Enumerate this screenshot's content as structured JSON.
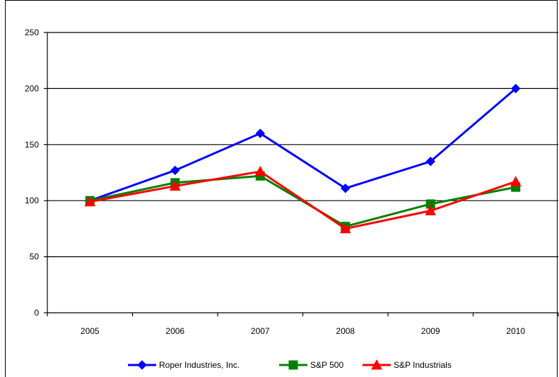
{
  "chart_data": {
    "type": "line",
    "categories": [
      "2005",
      "2006",
      "2007",
      "2008",
      "2009",
      "2010"
    ],
    "ylim": [
      0,
      250
    ],
    "yticks": [
      0,
      50,
      100,
      150,
      200,
      250
    ],
    "grid": "horizontal",
    "legend_position": "bottom",
    "series": [
      {
        "name": "Roper Industries, Inc.",
        "color": "#0000ff",
        "marker": "diamond",
        "values": [
          100,
          127,
          160,
          111,
          135,
          200
        ]
      },
      {
        "name": "S&P 500",
        "color": "#008000",
        "marker": "square",
        "values": [
          100,
          116,
          122,
          77,
          97,
          112
        ]
      },
      {
        "name": "S&P Industrials",
        "color": "#ff0000",
        "marker": "triangle",
        "values": [
          99,
          113,
          126,
          75,
          91,
          117
        ]
      }
    ]
  }
}
